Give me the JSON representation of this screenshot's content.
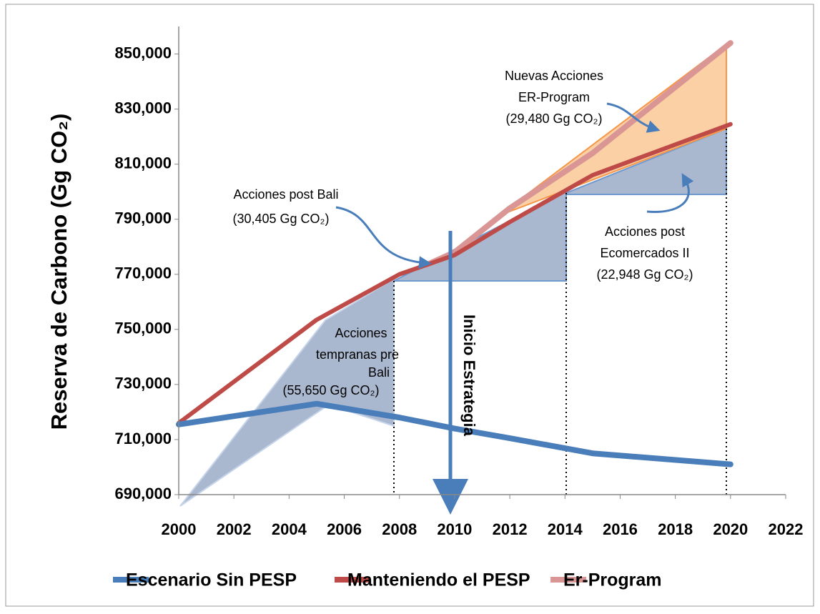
{
  "chart_data": {
    "type": "line",
    "y_label": "Reserva de Carbono (Gg CO₂)",
    "x": [
      2000,
      2005,
      2008,
      2009,
      2010,
      2012,
      2015,
      2020
    ],
    "series": [
      {
        "name": "Escenario Sin PESP",
        "color": "#4a7ebb",
        "values": [
          715500,
          723000,
          718000,
          716000,
          714000,
          710500,
          705000,
          701000
        ]
      },
      {
        "name": "Manteniendo el PESP",
        "color": "#be4b48",
        "values": [
          716000,
          753500,
          770000,
          773500,
          777000,
          789000,
          806000,
          824500
        ]
      },
      {
        "name": "Er-Program",
        "color": "#d99694",
        "values": [
          null,
          null,
          null,
          773500,
          778000,
          794000,
          814000,
          854000
        ]
      }
    ],
    "xlim": [
      2000,
      2022
    ],
    "xticks": [
      2000,
      2002,
      2004,
      2006,
      2008,
      2010,
      2012,
      2014,
      2016,
      2018,
      2020,
      2022
    ],
    "ylim": [
      690000,
      860000
    ],
    "yticks": [
      {
        "value": 690000,
        "label": "690,000"
      },
      {
        "value": 710000,
        "label": "710,000"
      },
      {
        "value": 730000,
        "label": "730,000"
      },
      {
        "value": 750000,
        "label": "750,000"
      },
      {
        "value": 770000,
        "label": "770,000"
      },
      {
        "value": 790000,
        "label": "790,000"
      },
      {
        "value": 810000,
        "label": "810,000"
      },
      {
        "value": 830000,
        "label": "830,000"
      },
      {
        "value": 850000,
        "label": "850,000"
      }
    ],
    "grid": false,
    "legend": "bottom",
    "annotations": [
      [
        "Nuevas Acciones",
        "ER-Program",
        "(29,480 Gg CO₂)"
      ],
      [
        "Acciones post Bali",
        "(30,405 Gg CO₂)"
      ],
      [
        "Acciones post",
        "Ecomercados II",
        "(22,948 Gg CO₂)"
      ],
      [
        "Acciones",
        "tempranas pre",
        "Bali",
        "(55,650 Gg CO₂)"
      ],
      [
        "Inicio Estrategia"
      ]
    ]
  }
}
